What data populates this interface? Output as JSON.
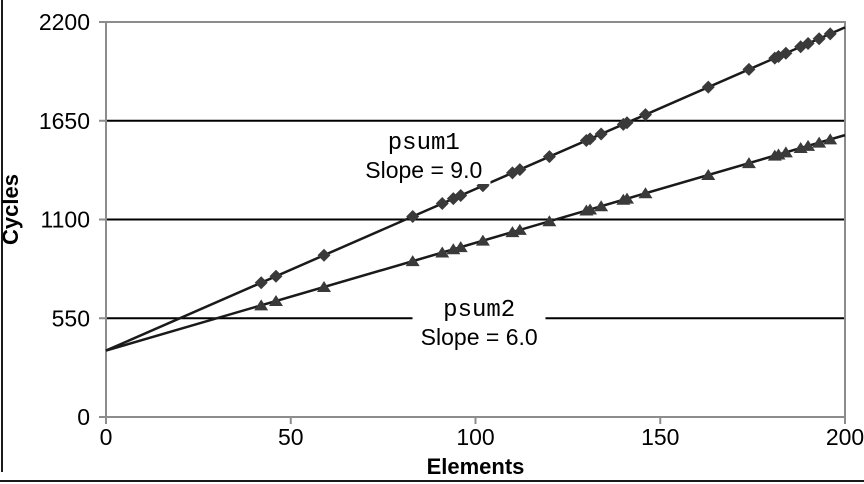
{
  "chart_data": {
    "type": "line",
    "title": "",
    "xlabel": "Elements",
    "ylabel": "Cycles",
    "xlim": [
      0,
      200
    ],
    "ylim": [
      0,
      2200
    ],
    "x_ticks": [
      0,
      50,
      100,
      150,
      200
    ],
    "y_ticks": [
      0,
      550,
      1100,
      1650,
      2200
    ],
    "gridlines_y": [
      550,
      1100,
      1650
    ],
    "grid": "horizontal-only",
    "legend_position": "none",
    "x": [
      42,
      46,
      59,
      83,
      91,
      94,
      96,
      102,
      110,
      112,
      120,
      130,
      131,
      134,
      140,
      141,
      146,
      163,
      174,
      181,
      182,
      184,
      188,
      190,
      193,
      196
    ],
    "series": [
      {
        "name": "psum1",
        "marker": "diamond",
        "slope": 9.0,
        "intercept": 370,
        "values": [
          748,
          784,
          901,
          1117,
          1189,
          1216,
          1234,
          1288,
          1360,
          1378,
          1450,
          1540,
          1549,
          1576,
          1630,
          1639,
          1684,
          1837,
          1936,
          1999,
          2008,
          2026,
          2062,
          2080,
          2107,
          2134
        ]
      },
      {
        "name": "psum2",
        "marker": "triangle",
        "slope": 6.0,
        "intercept": 370,
        "values": [
          622,
          646,
          724,
          868,
          916,
          934,
          946,
          982,
          1030,
          1042,
          1090,
          1150,
          1156,
          1174,
          1210,
          1216,
          1246,
          1348,
          1414,
          1456,
          1462,
          1474,
          1498,
          1510,
          1528,
          1546
        ]
      }
    ],
    "annotations": [
      {
        "series": "psum1",
        "line1": "psum1",
        "line2": "Slope = 9.0",
        "x": 86,
        "y": 1450
      },
      {
        "series": "psum2",
        "line1": "psum2",
        "line2": "Slope = 6.0",
        "x": 101,
        "y": 520
      }
    ],
    "colors": {
      "series_line": "#1a1a1a",
      "marker": "#3a3a3a",
      "axis": "#8c8c8c",
      "gridline": "#000000",
      "text": "#000000",
      "background": "#ffffff"
    }
  }
}
